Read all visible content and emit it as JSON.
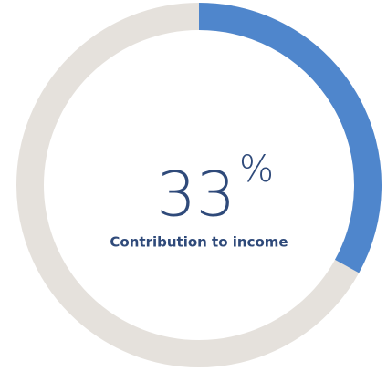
{
  "chart_data": {
    "type": "donut",
    "values": [
      33
    ],
    "unit": "%",
    "caption": "Contribution to income",
    "color": "#4f86cc",
    "track_color": "#e5e1dc"
  }
}
